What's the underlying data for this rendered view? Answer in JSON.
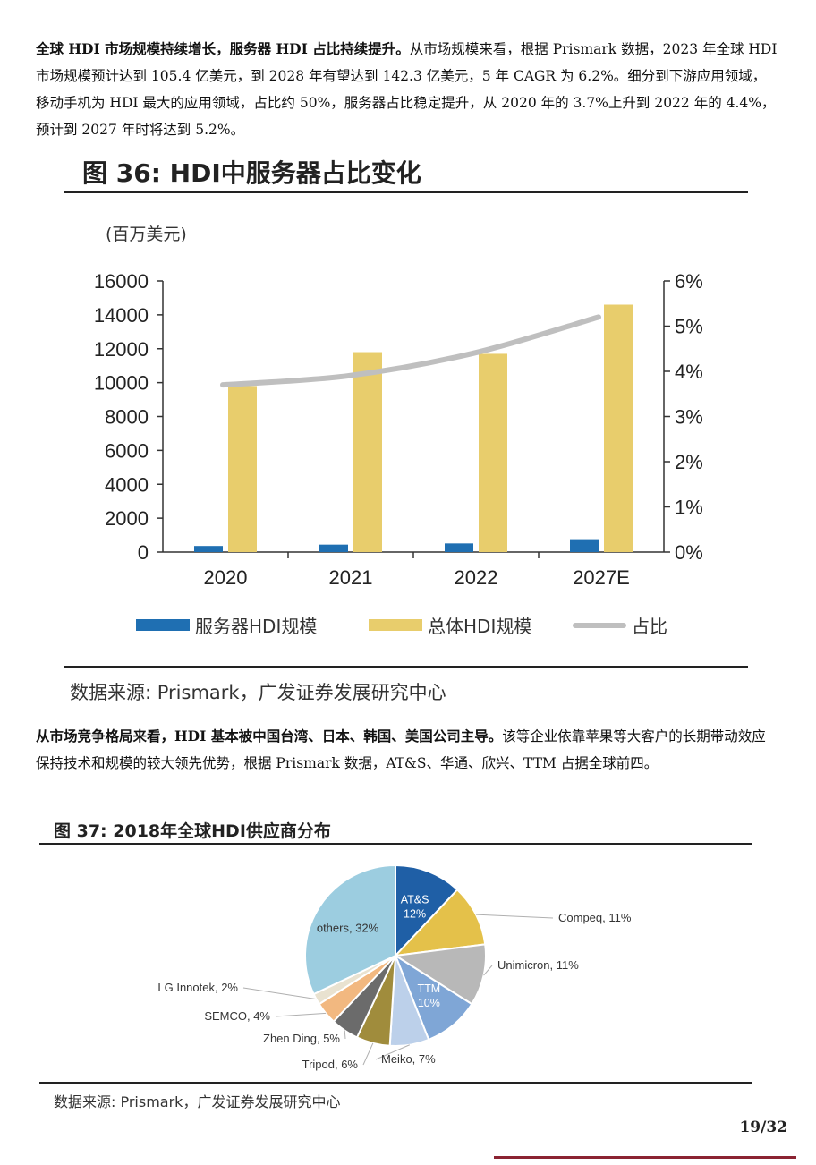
{
  "para1": {
    "bold": "全球 HDI 市场规模持续增长，服务器 HDI 占比持续提升。",
    "text": "从市场规模来看，根据 Prismark 数据，2023 年全球 HDI 市场规模预计达到 105.4 亿美元，到 2028 年有望达到 142.3 亿美元，5 年 CAGR 为 6.2%。细分到下游应用领域，移动手机为 HDI 最大的应用领域，占比约 50%，服务器占比稳定提升，从 2020 年的 3.7%上升到 2022 年的 4.4%，预计到 2027 年时将达到 5.2%。"
  },
  "figure36": {
    "title": "图 36: HDI中服务器占比变化",
    "unit": "(百万美元)",
    "legend": [
      "服务器HDI规模",
      "总体HDI规模",
      "占比"
    ],
    "source": "数据来源: Prismark，广发证券发展研究中心"
  },
  "chart_data": [
    {
      "type": "bar",
      "categories": [
        "2020",
        "2021",
        "2022",
        "2027E"
      ],
      "series": [
        {
          "name": "服务器HDI规模",
          "values": [
            360,
            440,
            510,
            760
          ],
          "color": "#1f6fb2"
        },
        {
          "name": "总体HDI规模",
          "values": [
            9800,
            11800,
            11700,
            14600
          ],
          "color": "#e8cd6c"
        },
        {
          "name": "占比",
          "type": "line",
          "axis": "right",
          "values": [
            3.7,
            3.9,
            4.4,
            5.2
          ],
          "color": "#bfbfbf"
        }
      ],
      "ylim": [
        0,
        16000
      ],
      "yticks": [
        "0",
        "2000",
        "4000",
        "6000",
        "8000",
        "10000",
        "12000",
        "14000",
        "16000"
      ],
      "y2lim": [
        0,
        6
      ],
      "y2ticks": [
        "0%",
        "1%",
        "2%",
        "3%",
        "4%",
        "5%",
        "6%"
      ],
      "legend_position": "bottom"
    },
    {
      "type": "pie",
      "title": "图 37: 2018年全球HDI供应商分布",
      "slices": [
        {
          "label": "AT&S, 12%",
          "value": 12,
          "color": "#1f5fa6",
          "inside": true
        },
        {
          "label": "Compeq, 11%",
          "value": 11,
          "color": "#e4c14a",
          "inside": false
        },
        {
          "label": "Unimicron, 11%",
          "value": 11,
          "color": "#b8b8b8",
          "inside": false
        },
        {
          "label": "TTM, 10%",
          "value": 10,
          "color": "#7fa6d6",
          "inside": true
        },
        {
          "label": "Meiko, 7%",
          "value": 7,
          "color": "#bcd0ea",
          "inside": false
        },
        {
          "label": "Tripod, 6%",
          "value": 6,
          "color": "#a08c3c",
          "inside": false
        },
        {
          "label": "Zhen Ding, 5%",
          "value": 5,
          "color": "#6b6b6b",
          "inside": false
        },
        {
          "label": "SEMCO, 4%",
          "value": 4,
          "color": "#f2b880",
          "inside": false
        },
        {
          "label": "LG Innotek, 2%",
          "value": 2,
          "color": "#e9e2d0",
          "inside": false
        },
        {
          "label": "others, 32%",
          "value": 32,
          "color": "#9ccde0",
          "inside": true
        }
      ]
    }
  ],
  "para2": {
    "bold": "从市场竞争格局来看，HDI 基本被中国台湾、日本、韩国、美国公司主导。",
    "text": "该等企业依靠苹果等大客户的长期带动效应保持技术和规模的较大领先优势，根据 Prismark 数据，AT&S、华通、欣兴、TTM 占据全球前四。"
  },
  "figure37": {
    "title": "图 37: 2018年全球HDI供应商分布",
    "source": "数据来源: Prismark，广发证券发展研究中心"
  },
  "page": "19/32"
}
